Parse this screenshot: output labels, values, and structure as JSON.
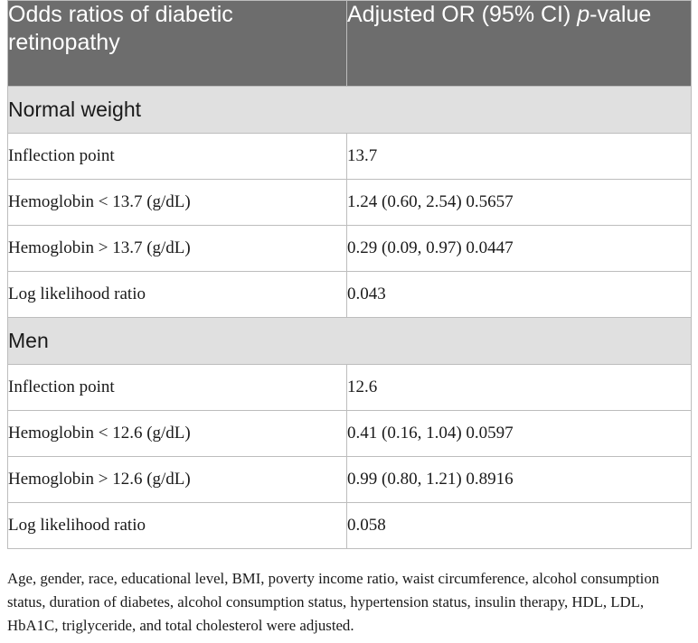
{
  "table": {
    "header": {
      "col1": "Odds ratios of diabetic retinopathy",
      "col2_prefix": "Adjusted OR (95% CI) ",
      "col2_italic": "p",
      "col2_suffix": "-value"
    },
    "sections": [
      {
        "title": "Normal weight",
        "rows": [
          {
            "label": "Inflection point",
            "value": "13.7"
          },
          {
            "label": "Hemoglobin < 13.7 (g/dL)",
            "value": "1.24 (0.60, 2.54) 0.5657"
          },
          {
            "label": "Hemoglobin > 13.7 (g/dL)",
            "value": "0.29 (0.09, 0.97) 0.0447"
          },
          {
            "label": "Log likelihood ratio",
            "value": "0.043"
          }
        ]
      },
      {
        "title": "Men",
        "rows": [
          {
            "label": "Inflection point",
            "value": "12.6"
          },
          {
            "label": "Hemoglobin < 12.6 (g/dL)",
            "value": "0.41 (0.16, 1.04) 0.0597"
          },
          {
            "label": "Hemoglobin > 12.6 (g/dL)",
            "value": "0.99 (0.80, 1.21) 0.8916"
          },
          {
            "label": "Log likelihood ratio",
            "value": "0.058"
          }
        ]
      }
    ]
  },
  "footnote": "Age, gender, race, educational level, BMI, poverty income ratio, waist circumference, alcohol consumption status, duration of diabetes, alcohol consumption status, hypertension status, insulin therapy, HDL, LDL, HbA1C, triglyceride, and total cholesterol were adjusted."
}
